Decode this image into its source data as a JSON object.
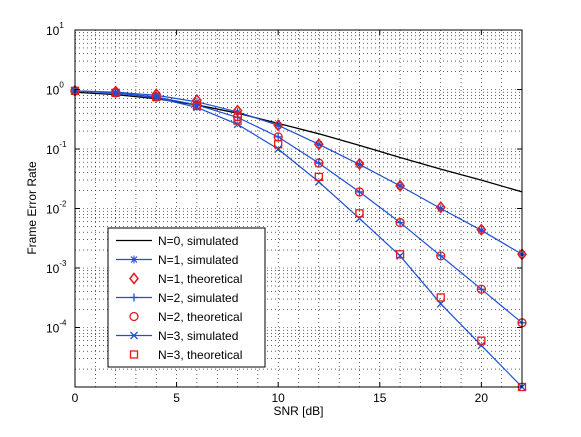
{
  "chart_data": {
    "type": "line",
    "xlabel": "SNR [dB]",
    "ylabel": "Frame Error Rate",
    "xlim": [
      0,
      22
    ],
    "ylim": [
      1e-05,
      10
    ],
    "y_scale": "log",
    "grid": true,
    "legend_position": "bottom-left",
    "x_ticks": [
      "0",
      "5",
      "10",
      "15",
      "20"
    ],
    "y_ticks": [
      {
        "base": "10",
        "exp": "-4"
      },
      {
        "base": "10",
        "exp": "-3"
      },
      {
        "base": "10",
        "exp": "-2"
      },
      {
        "base": "10",
        "exp": "-1"
      },
      {
        "base": "10",
        "exp": "0"
      },
      {
        "base": "10",
        "exp": "1"
      }
    ],
    "series": [
      {
        "name": "N=0, simulated",
        "color": "#000000",
        "marker": "none",
        "line": true,
        "x": [
          0,
          2,
          4,
          6,
          8,
          10,
          12,
          14,
          16,
          18,
          20,
          22
        ],
        "y": [
          0.9,
          0.82,
          0.7,
          0.55,
          0.4,
          0.27,
          0.18,
          0.115,
          0.072,
          0.046,
          0.03,
          0.019
        ]
      },
      {
        "name": "N=1, simulated",
        "color": "#1f4fd6",
        "marker": "star",
        "line": true,
        "x": [
          0,
          2,
          4,
          6,
          8,
          10,
          12,
          14,
          16,
          18,
          20,
          22
        ],
        "y": [
          0.95,
          0.9,
          0.8,
          0.62,
          0.42,
          0.25,
          0.12,
          0.055,
          0.024,
          0.01,
          0.0043,
          0.0017
        ]
      },
      {
        "name": "N=1, theoretical",
        "color": "#e41a1c",
        "marker": "diamond",
        "line": false,
        "x": [
          0,
          2,
          4,
          6,
          8,
          10,
          12,
          14,
          16,
          18,
          20,
          22
        ],
        "y": [
          0.95,
          0.92,
          0.83,
          0.66,
          0.44,
          0.25,
          0.12,
          0.056,
          0.024,
          0.0105,
          0.0044,
          0.0017
        ]
      },
      {
        "name": "N=2, simulated",
        "color": "#1f4fd6",
        "marker": "plus",
        "line": true,
        "x": [
          0,
          2,
          4,
          6,
          8,
          10,
          12,
          14,
          16,
          18,
          20,
          22
        ],
        "y": [
          0.95,
          0.88,
          0.75,
          0.55,
          0.34,
          0.16,
          0.058,
          0.019,
          0.0058,
          0.0016,
          0.00044,
          0.00012
        ]
      },
      {
        "name": "N=2, theoretical",
        "color": "#e41a1c",
        "marker": "circle",
        "line": false,
        "x": [
          0,
          2,
          4,
          6,
          8,
          10,
          12,
          14,
          16,
          18,
          20,
          22
        ],
        "y": [
          0.95,
          0.88,
          0.75,
          0.55,
          0.35,
          0.16,
          0.058,
          0.019,
          0.0058,
          0.0016,
          0.00044,
          0.00012
        ]
      },
      {
        "name": "N=3, simulated",
        "color": "#1f4fd6",
        "marker": "x",
        "line": true,
        "x": [
          0,
          2,
          4,
          6,
          8,
          10,
          12,
          14,
          16,
          18,
          20,
          22
        ],
        "y": [
          0.95,
          0.87,
          0.73,
          0.5,
          0.26,
          0.1,
          0.028,
          0.0068,
          0.0016,
          0.00025,
          5e-05,
          1e-05
        ]
      },
      {
        "name": "N=3, theoretical",
        "color": "#e41a1c",
        "marker": "square",
        "line": false,
        "x": [
          0,
          2,
          4,
          6,
          8,
          10,
          12,
          14,
          16,
          18,
          20,
          22
        ],
        "y": [
          0.95,
          0.88,
          0.75,
          0.53,
          0.3,
          0.12,
          0.034,
          0.0083,
          0.0017,
          0.00032,
          6e-05,
          1e-05
        ]
      }
    ]
  }
}
